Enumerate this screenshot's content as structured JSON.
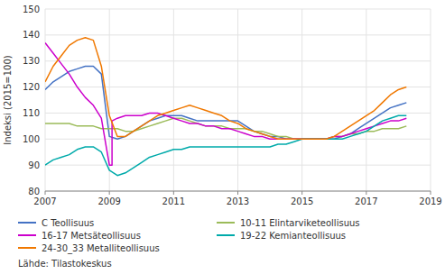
{
  "chart_data": {
    "type": "line",
    "ylabel": "Indeksi (2015=100)",
    "source": "Lähde: Tilastokeskus",
    "xlim": [
      2007.0,
      2019.0
    ],
    "ylim": [
      80,
      150
    ],
    "yticks": [
      80,
      90,
      100,
      110,
      120,
      130,
      140,
      150
    ],
    "xticks": [
      2007,
      2009,
      2011,
      2013,
      2015,
      2017,
      2019
    ],
    "grid": true,
    "legend": "bottom",
    "series": [
      {
        "name": "C Teollisuus",
        "color": "#4472C4",
        "x": [
          2007.0,
          2007.25,
          2007.5,
          2007.75,
          2008.0,
          2008.25,
          2008.5,
          2008.75,
          2009.0,
          2009.25,
          2009.5,
          2009.75,
          2010.0,
          2010.25,
          2010.5,
          2010.75,
          2011.0,
          2011.25,
          2011.5,
          2011.75,
          2012.0,
          2012.25,
          2012.5,
          2012.75,
          2013.0,
          2013.25,
          2013.5,
          2013.75,
          2014.0,
          2014.25,
          2014.5,
          2014.75,
          2015.0,
          2015.25,
          2015.5,
          2015.75,
          2016.0,
          2016.25,
          2016.5,
          2016.75,
          2017.0,
          2017.25,
          2017.5,
          2017.75,
          2018.0,
          2018.25
        ],
        "values": [
          119,
          122,
          124,
          126,
          127,
          128,
          128,
          125,
          101,
          100,
          101,
          103,
          105,
          107,
          108,
          109,
          109,
          109,
          108,
          107,
          107,
          107,
          107,
          107,
          107,
          105,
          103,
          102,
          101,
          101,
          100,
          100,
          100,
          100,
          100,
          100,
          100,
          101,
          102,
          104,
          106,
          108,
          110,
          112,
          113,
          114
        ]
      },
      {
        "name": "10-11 Elintarviketeollisuus",
        "color": "#9BBB59",
        "x": [
          2007.0,
          2007.25,
          2007.5,
          2007.75,
          2008.0,
          2008.25,
          2008.5,
          2008.75,
          2009.0,
          2009.25,
          2009.5,
          2009.75,
          2010.0,
          2010.25,
          2010.5,
          2010.75,
          2011.0,
          2011.25,
          2011.5,
          2011.75,
          2012.0,
          2012.25,
          2012.5,
          2012.75,
          2013.0,
          2013.25,
          2013.5,
          2013.75,
          2014.0,
          2014.25,
          2014.5,
          2014.75,
          2015.0,
          2015.25,
          2015.5,
          2015.75,
          2016.0,
          2016.25,
          2016.5,
          2016.75,
          2017.0,
          2017.25,
          2017.5,
          2017.75,
          2018.0,
          2018.25
        ],
        "values": [
          106,
          106,
          106,
          106,
          105,
          105,
          105,
          104,
          104,
          104,
          103,
          103,
          104,
          105,
          106,
          107,
          108,
          108,
          107,
          106,
          105,
          105,
          105,
          104,
          104,
          104,
          103,
          103,
          102,
          101,
          101,
          100,
          100,
          100,
          100,
          100,
          101,
          101,
          102,
          102,
          103,
          103,
          104,
          104,
          104,
          105
        ]
      },
      {
        "name": "16-17 Metsäteollisuus",
        "color": "#CC00CC",
        "x": [
          2007.0,
          2007.25,
          2007.5,
          2007.75,
          2008.0,
          2008.25,
          2008.5,
          2008.75,
          2009.0,
          2009.083,
          2009.083,
          2009.25,
          2009.5,
          2009.75,
          2010.0,
          2010.25,
          2010.5,
          2010.75,
          2011.0,
          2011.25,
          2011.5,
          2011.75,
          2012.0,
          2012.25,
          2012.5,
          2012.75,
          2013.0,
          2013.25,
          2013.5,
          2013.75,
          2014.0,
          2014.25,
          2014.5,
          2014.75,
          2015.0,
          2015.25,
          2015.5,
          2015.75,
          2016.0,
          2016.25,
          2016.5,
          2016.75,
          2017.0,
          2017.25,
          2017.5,
          2017.75,
          2018.0,
          2018.25
        ],
        "values": [
          137,
          133,
          129,
          125,
          120,
          116,
          113,
          108,
          90,
          90,
          107,
          108,
          109,
          109,
          109,
          110,
          110,
          109,
          108,
          107,
          106,
          106,
          105,
          105,
          104,
          104,
          103,
          102,
          101,
          101,
          100,
          100,
          100,
          100,
          100,
          100,
          100,
          100,
          101,
          101,
          102,
          103,
          104,
          105,
          106,
          107,
          107,
          108
        ]
      },
      {
        "name": "19-22 Kemianteollisuus",
        "color": "#00AAAA",
        "x": [
          2007.0,
          2007.25,
          2007.5,
          2007.75,
          2008.0,
          2008.25,
          2008.5,
          2008.75,
          2009.0,
          2009.25,
          2009.5,
          2009.75,
          2010.0,
          2010.25,
          2010.5,
          2010.75,
          2011.0,
          2011.25,
          2011.5,
          2011.75,
          2012.0,
          2012.25,
          2012.5,
          2012.75,
          2013.0,
          2013.25,
          2013.5,
          2013.75,
          2014.0,
          2014.25,
          2014.5,
          2014.75,
          2015.0,
          2015.25,
          2015.5,
          2015.75,
          2016.0,
          2016.25,
          2016.5,
          2016.75,
          2017.0,
          2017.25,
          2017.5,
          2017.75,
          2018.0,
          2018.25
        ],
        "values": [
          90,
          92,
          93,
          94,
          96,
          97,
          97,
          95,
          88,
          86,
          87,
          89,
          91,
          93,
          94,
          95,
          96,
          96,
          97,
          97,
          97,
          97,
          97,
          97,
          97,
          97,
          97,
          97,
          97,
          98,
          98,
          99,
          100,
          100,
          100,
          100,
          100,
          100,
          101,
          102,
          103,
          105,
          107,
          108,
          109,
          109
        ]
      },
      {
        "name": "24-30_33 Metalliteollisuus",
        "color": "#F07800",
        "x": [
          2007.0,
          2007.25,
          2007.5,
          2007.75,
          2008.0,
          2008.25,
          2008.5,
          2008.75,
          2009.0,
          2009.25,
          2009.5,
          2009.75,
          2010.0,
          2010.25,
          2010.5,
          2010.75,
          2011.0,
          2011.25,
          2011.5,
          2011.75,
          2012.0,
          2012.25,
          2012.5,
          2012.75,
          2013.0,
          2013.25,
          2013.5,
          2013.75,
          2014.0,
          2014.25,
          2014.5,
          2014.75,
          2015.0,
          2015.25,
          2015.5,
          2015.75,
          2016.0,
          2016.25,
          2016.5,
          2016.75,
          2017.0,
          2017.25,
          2017.5,
          2017.75,
          2018.0,
          2018.25
        ],
        "values": [
          122,
          128,
          132,
          136,
          138,
          139,
          138,
          128,
          109,
          101,
          101,
          103,
          105,
          107,
          109,
          110,
          111,
          112,
          113,
          112,
          111,
          110,
          109,
          107,
          106,
          104,
          103,
          102,
          101,
          100,
          100,
          100,
          100,
          100,
          100,
          100,
          101,
          103,
          105,
          107,
          109,
          111,
          114,
          117,
          119,
          120
        ]
      }
    ]
  }
}
